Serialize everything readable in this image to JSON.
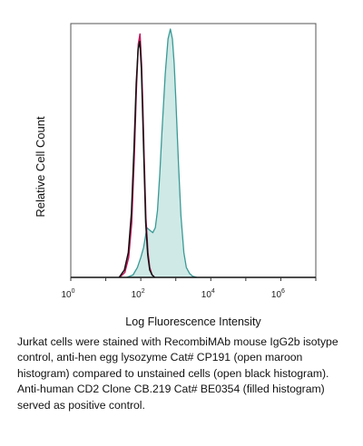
{
  "chart_data": {
    "type": "area",
    "title": "",
    "xlabel": "Log Fluorescence Intensity",
    "ylabel": "Relative Cell Count",
    "x_scale": "log",
    "xlim": [
      1,
      10000000
    ],
    "ylim": [
      0,
      1
    ],
    "grid": false,
    "legend": "none",
    "x_ticks": [
      {
        "value": 1,
        "base": "10",
        "exp": "0"
      },
      {
        "value": 100,
        "base": "10",
        "exp": "2"
      },
      {
        "value": 10000,
        "base": "10",
        "exp": "4"
      },
      {
        "value": 1000000,
        "base": "10",
        "exp": "6"
      }
    ],
    "series": [
      {
        "color": "#3a9a96",
        "fill": "#cfe9e6",
        "style": "filled",
        "x": [
          40,
          60,
          80,
          100,
          120,
          150,
          180,
          220,
          260,
          300,
          350,
          400,
          500,
          600,
          700,
          800,
          900,
          1000,
          1200,
          1400,
          1700,
          2000,
          2500,
          3000,
          4000
        ],
        "y": [
          0.0,
          0.01,
          0.04,
          0.08,
          0.12,
          0.2,
          0.19,
          0.18,
          0.2,
          0.27,
          0.42,
          0.58,
          0.82,
          0.96,
          1.0,
          0.96,
          0.86,
          0.72,
          0.45,
          0.25,
          0.1,
          0.04,
          0.015,
          0.005,
          0.0
        ]
      },
      {
        "color": "#c2185b",
        "style": "open",
        "x": [
          25,
          35,
          45,
          55,
          65,
          75,
          85,
          95,
          105,
          115,
          125,
          140,
          160,
          180,
          210,
          250
        ],
        "y": [
          0.0,
          0.02,
          0.08,
          0.22,
          0.48,
          0.76,
          0.94,
          0.98,
          0.86,
          0.68,
          0.48,
          0.24,
          0.1,
          0.04,
          0.01,
          0.0
        ]
      },
      {
        "color": "#111111",
        "style": "open",
        "x": [
          24,
          34,
          44,
          54,
          64,
          74,
          84,
          94,
          104,
          114,
          124,
          138,
          158,
          180,
          210,
          250
        ],
        "y": [
          0.0,
          0.03,
          0.1,
          0.26,
          0.52,
          0.78,
          0.92,
          0.95,
          0.84,
          0.64,
          0.45,
          0.22,
          0.09,
          0.03,
          0.01,
          0.0
        ]
      }
    ]
  },
  "caption": "Jurkat cells were stained with RecombiMAb mouse IgG2b isotype control, anti-hen egg lysozyme Cat# CP191 (open maroon histogram) compared to unstained cells (open black histogram). Anti-human CD2 Clone CB.219 Cat# BE0354 (filled histogram) served as positive control."
}
